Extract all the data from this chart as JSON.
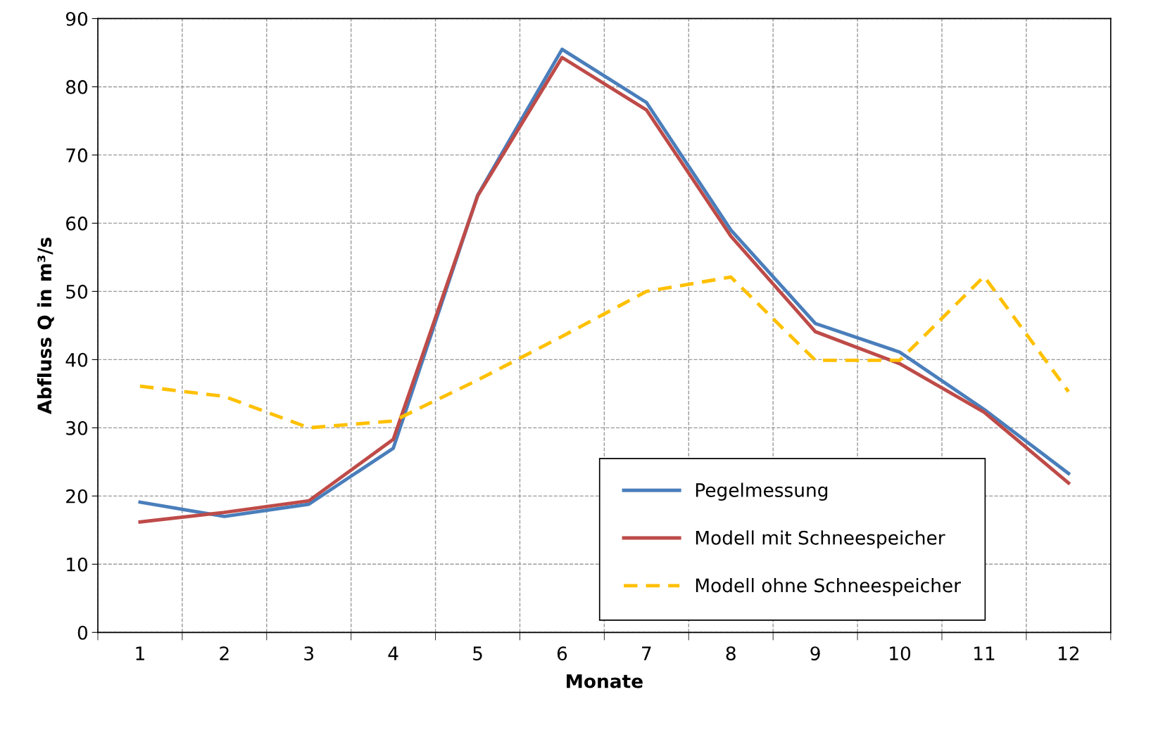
{
  "chart_data": {
    "type": "line",
    "xlabel": "Monate",
    "ylabel": "Abfluss Q in m³/s",
    "categories": [
      "1",
      "2",
      "3",
      "4",
      "5",
      "6",
      "7",
      "8",
      "9",
      "10",
      "11",
      "12"
    ],
    "series": [
      {
        "name": "Pegelmessung",
        "color": "#4a7ebb",
        "line_style": "solid",
        "values": [
          19.1,
          17.0,
          18.8,
          27.0,
          64.1,
          85.5,
          77.7,
          59.0,
          45.3,
          41.1,
          32.7,
          23.3
        ]
      },
      {
        "name": "Modell mit Schneespeicher",
        "color": "#be4b48",
        "line_style": "solid",
        "values": [
          16.2,
          17.6,
          19.3,
          28.3,
          64.0,
          84.3,
          76.6,
          58.1,
          44.1,
          39.4,
          32.3,
          21.9
        ]
      },
      {
        "name": "Modell ohne Schneespeicher",
        "color": "#ffc000",
        "line_style": "dashed",
        "values": [
          36.1,
          34.6,
          30.0,
          31.0,
          37.0,
          43.4,
          50.0,
          52.1,
          39.9,
          39.9,
          52.2,
          35.3
        ]
      }
    ],
    "ylim": [
      0,
      90
    ],
    "yticks": [
      0,
      10,
      20,
      30,
      40,
      50,
      60,
      70,
      80,
      90
    ],
    "grid": true,
    "legend": "bottom right",
    "marker": "none"
  }
}
